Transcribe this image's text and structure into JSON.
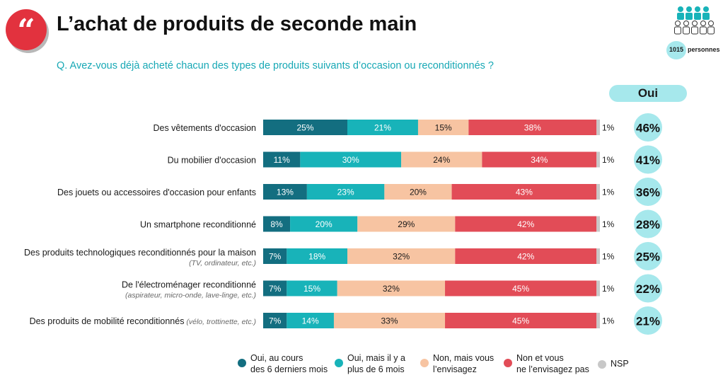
{
  "header": {
    "quote_glyph": "“",
    "title": "L’achat de produits de seconde main",
    "question": "Q. Avez-vous déjà acheté chacun des types de produits suivants d’occasion ou reconditionnés ?",
    "sample_count": "1015",
    "sample_label": "personnes"
  },
  "oui_header": "Oui",
  "colors": {
    "recent": "#136e80",
    "older": "#18b3b9",
    "envisage": "#f7c4a2",
    "no": "#e24c57",
    "nsp": "#c8c8c8",
    "oui_bubble": "#a6e8ec",
    "title_red": "#e2323e"
  },
  "legend": [
    {
      "key": "recent",
      "line1": "Oui, au cours",
      "line2": "des 6 derniers mois"
    },
    {
      "key": "older",
      "line1": "Oui, mais il y a",
      "line2": "plus de 6 mois"
    },
    {
      "key": "envisage",
      "line1": "Non, mais vous",
      "line2": "l’envisagez"
    },
    {
      "key": "no",
      "line1": "Non et vous",
      "line2": "ne l’envisagez pas"
    },
    {
      "key": "nsp",
      "line1": "NSP",
      "line2": ""
    }
  ],
  "chart_data": {
    "type": "bar",
    "orientation": "horizontal-stacked-100",
    "unit": "%",
    "series_names": [
      "Oui, au cours des 6 derniers mois",
      "Oui, mais il y a plus de 6 mois",
      "Non, mais vous l’envisagez",
      "Non et vous ne l’envisagez pas",
      "NSP"
    ],
    "categories": [
      {
        "label": "Des vêtements d'occasion",
        "sub": "",
        "inline_sub": "",
        "values": [
          25,
          21,
          15,
          38,
          1
        ],
        "oui_total": "46%"
      },
      {
        "label": "Du mobilier d'occasion",
        "sub": "",
        "inline_sub": "",
        "values": [
          11,
          30,
          24,
          34,
          1
        ],
        "oui_total": "41%"
      },
      {
        "label": "Des jouets ou accessoires d'occasion pour enfants",
        "sub": "",
        "inline_sub": "",
        "values": [
          13,
          23,
          20,
          43,
          1
        ],
        "oui_total": "36%"
      },
      {
        "label": "Un smartphone reconditionné",
        "sub": "",
        "inline_sub": "",
        "values": [
          8,
          20,
          29,
          42,
          1
        ],
        "oui_total": "28%"
      },
      {
        "label": "Des produits technologiques reconditionnés pour la maison",
        "sub": "(TV, ordinateur, etc.)",
        "inline_sub": "",
        "values": [
          7,
          18,
          32,
          42,
          1
        ],
        "oui_total": "25%"
      },
      {
        "label": "De l'électroménager reconditionné",
        "sub": "(aspirateur, micro-onde, lave-linge, etc.)",
        "inline_sub": "",
        "values": [
          7,
          15,
          32,
          45,
          1
        ],
        "oui_total": "22%"
      },
      {
        "label": "Des produits de mobilité reconditionnés",
        "sub": "",
        "inline_sub": "(vélo, trottinette, etc.)",
        "values": [
          7,
          14,
          33,
          45,
          1
        ],
        "oui_total": "21%"
      }
    ]
  }
}
